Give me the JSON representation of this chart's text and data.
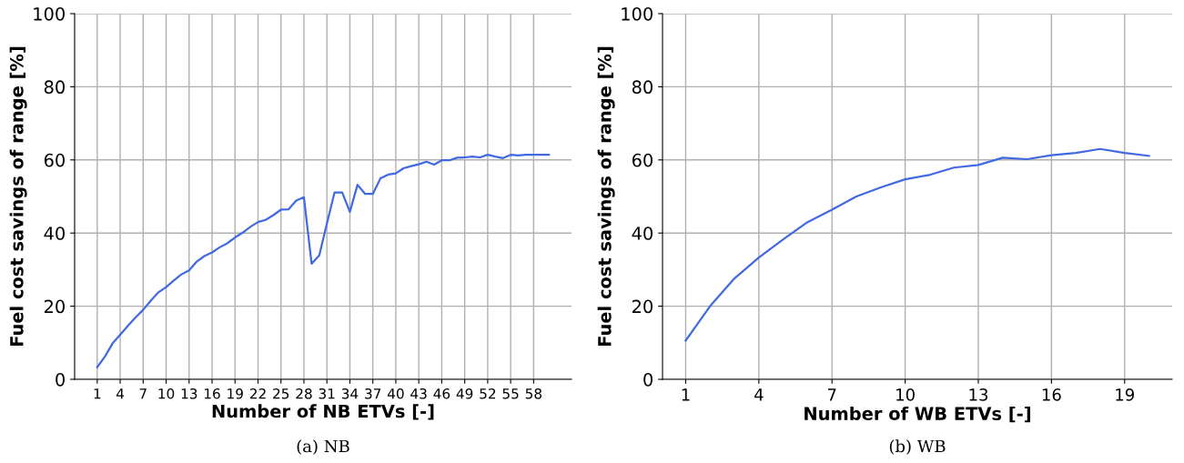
{
  "chart_data": [
    {
      "type": "line",
      "xlabel": "Number of NB ETVs [-]",
      "ylabel": "Fuel cost savings of range [%]",
      "annotations": [
        "(a) NB"
      ],
      "x": [
        1,
        2,
        3,
        4,
        5,
        6,
        7,
        8,
        9,
        10,
        11,
        12,
        13,
        14,
        15,
        16,
        17,
        18,
        19,
        20,
        21,
        22,
        23,
        24,
        25,
        26,
        27,
        28,
        29,
        30,
        31,
        32,
        33,
        34,
        35,
        36,
        37,
        38,
        39,
        40,
        41,
        42,
        43,
        44,
        45,
        46,
        47,
        48,
        49,
        50,
        51,
        52,
        53,
        54,
        55,
        56,
        57,
        58,
        59,
        60
      ],
      "series": [
        {
          "color": "#4169e1",
          "values": [
            3.3,
            6.2,
            9.8,
            12.2,
            14.6,
            16.9,
            19.0,
            21.5,
            23.8,
            25.2,
            27.0,
            28.7,
            29.8,
            32.2,
            33.7,
            34.7,
            36.1,
            37.2,
            38.8,
            40.1,
            41.7,
            43.0,
            43.6,
            44.9,
            46.4,
            46.5,
            48.9,
            49.8,
            31.6,
            33.9,
            42.6,
            51.1,
            51.1,
            45.8,
            53.2,
            50.7,
            50.7,
            55.0,
            56.0,
            56.3,
            57.7,
            58.3,
            58.8,
            59.5,
            58.7,
            59.9,
            59.9,
            60.6,
            60.7,
            60.9,
            60.7,
            61.4,
            60.9,
            60.5,
            61.4,
            61.2,
            61.4,
            61.4,
            61.4,
            61.4
          ]
        }
      ],
      "xlim": [
        -1.95,
        62.95
      ],
      "xticks": [
        1,
        4,
        7,
        10,
        13,
        16,
        19,
        22,
        25,
        28,
        31,
        34,
        37,
        40,
        43,
        46,
        49,
        52,
        55,
        58
      ],
      "ylim": [
        0,
        100
      ],
      "yticks": [
        0,
        20,
        40,
        60,
        80,
        100
      ],
      "grid": true,
      "line_style": "solid"
    },
    {
      "type": "line",
      "xlabel": "Number of WB ETVs [-]",
      "ylabel": "Fuel cost savings of range [%]",
      "annotations": [
        "(b) WB"
      ],
      "x": [
        1,
        2,
        3,
        4,
        5,
        6,
        7,
        8,
        9,
        10,
        11,
        12,
        13,
        14,
        15,
        16,
        17,
        18,
        19,
        20
      ],
      "series": [
        {
          "color": "#4169e1",
          "values": [
            10.6,
            20.0,
            27.6,
            33.3,
            38.3,
            43.0,
            46.4,
            50.0,
            52.5,
            54.7,
            55.9,
            57.9,
            58.6,
            60.6,
            60.2,
            61.3,
            61.9,
            63.0,
            61.9,
            61.1
          ]
        }
      ],
      "xlim": [
        0.05,
        20.95
      ],
      "xticks": [
        1,
        4,
        7,
        10,
        13,
        16,
        19
      ],
      "ylim": [
        0,
        100
      ],
      "yticks": [
        0,
        20,
        40,
        60,
        80,
        100
      ],
      "grid": true,
      "line_style": "solid"
    }
  ]
}
